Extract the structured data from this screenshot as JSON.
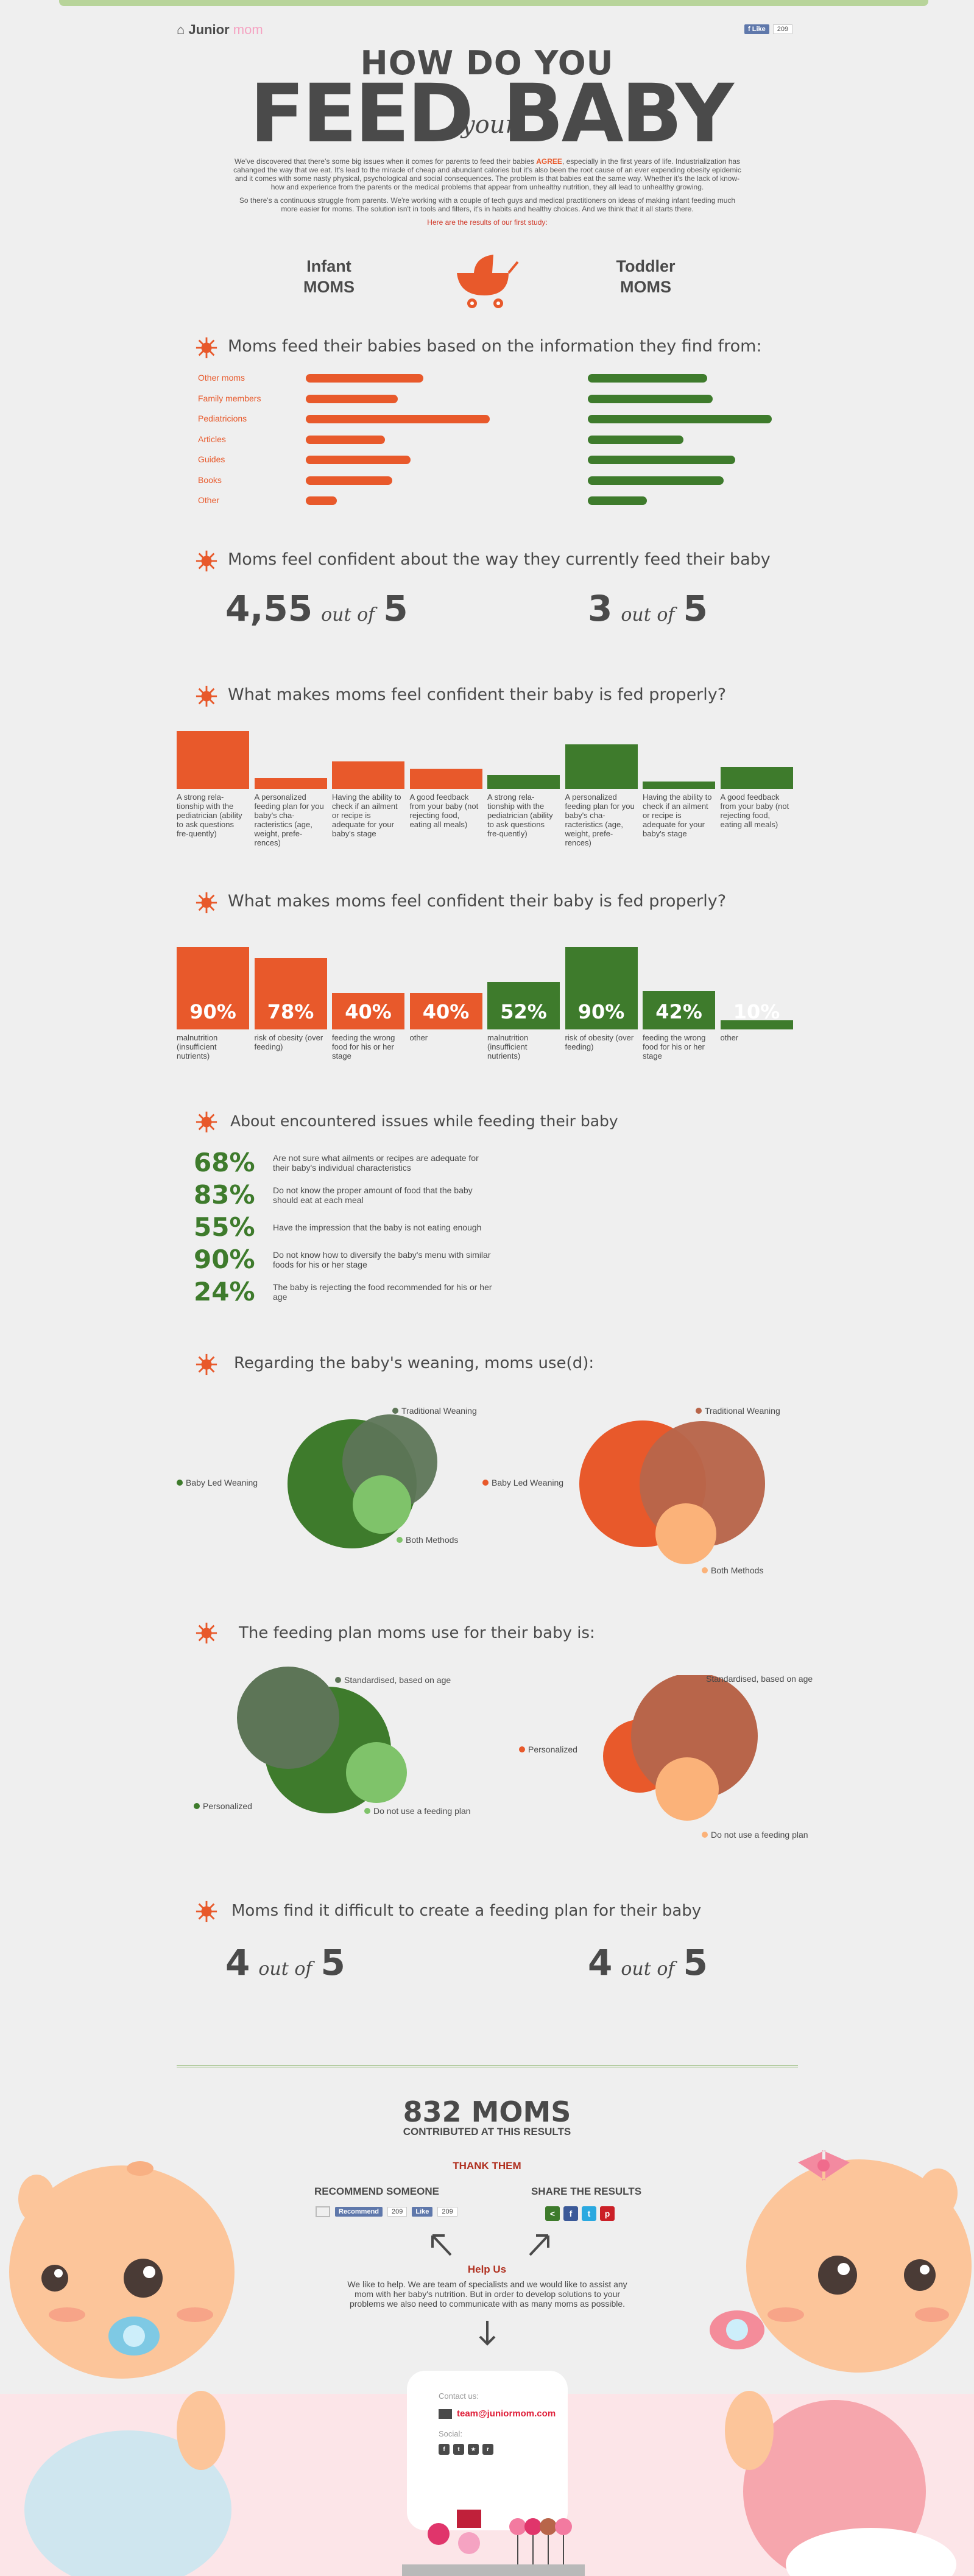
{
  "header": {
    "logo_a": "Junior",
    "logo_b": "mom",
    "fb_like": "Like",
    "fb_count": "209"
  },
  "title": {
    "how": "HOW DO YOU",
    "feed": "FEED",
    "your": "your",
    "baby": "BABY"
  },
  "intro": {
    "p1a": "We've discovered that there's some big issues when it comes for parents to feed their babies ",
    "p1b": "AGREE",
    "p1c": ", especially in the first years of life. Industrialization has cahanged the way that we eat. It's lead to the miracle of cheap and abundant calories but it's also been the root cause of an ever expending obesity epidemic and it comes with some nasty physical, psychological and social consequences. The problem is that babies eat the same way. Whether it's the lack of know-how and experience from the parents or the medical problems that appear from unhealthy nutrition, they all lead to unhealthy growing.",
    "p2": "So there's a continuous struggle from parents. We're working with a couple of tech guys and medical practitioners on ideas of making infant feeding much more easier for moms. The solution isn't in tools and filters, it's in habits and healthy choices. And we think that it all starts there.",
    "p3": "Here are the results of our first study:"
  },
  "columns": {
    "infant_a": "Infant",
    "infant_b": "MOMS",
    "toddler_a": "Toddler",
    "toddler_b": "MOMS"
  },
  "colors": {
    "orange": "#e8592b",
    "green": "#3e7b2c",
    "lightgreen": "#7fc36a",
    "peach": "#fbb279",
    "brown": "#b8654a",
    "sage": "#5d7557"
  },
  "s1": {
    "title": "Moms feed their babies based on the information they find from:",
    "sources": [
      {
        "label": "Other moms",
        "infant": 0.64,
        "toddler": 0.65
      },
      {
        "label": "Family members",
        "infant": 0.5,
        "toddler": 0.68
      },
      {
        "label": "Pediatricions",
        "infant": 1.0,
        "toddler": 1.0
      },
      {
        "label": "Articles",
        "infant": 0.43,
        "toddler": 0.52
      },
      {
        "label": "Guides",
        "infant": 0.57,
        "toddler": 0.8
      },
      {
        "label": "Books",
        "infant": 0.47,
        "toddler": 0.74
      },
      {
        "label": "Other",
        "infant": 0.17,
        "toddler": 0.32
      }
    ]
  },
  "s2": {
    "title": "Moms feel confident about the way they currently feed their baby",
    "infant_score": "4,55",
    "infant_max": "5",
    "toddler_score": "3",
    "toddler_max": "5",
    "out_of": "out of"
  },
  "s3": {
    "title": "What makes moms feel confident their baby is fed properly?",
    "infant": [
      {
        "v": 0.95,
        "label": "A strong rela-tionship with the pediatrician (ability to ask questions fre-quently)"
      },
      {
        "v": 0.18,
        "label": "A personalized feeding plan for you baby's cha-racteristics (age, weight, prefe-rences)"
      },
      {
        "v": 0.45,
        "label": "Having the ability to check if an ailment or recipe is adequate for your baby's stage"
      },
      {
        "v": 0.33,
        "label": "A good feedback from your baby (not rejecting food, eating all meals)"
      }
    ],
    "toddler": [
      {
        "v": 0.23,
        "label": "A strong rela-tionship with the pediatrician (ability to ask questions fre-quently)"
      },
      {
        "v": 0.73,
        "label": "A personalized feeding plan for you baby's cha-racteristics (age, weight, prefe-rences)"
      },
      {
        "v": 0.12,
        "label": "Having the ability to check if an ailment or recipe is adequate for your baby's stage"
      },
      {
        "v": 0.36,
        "label": "A good feedback from your baby (not rejecting food, eating all meals)"
      }
    ]
  },
  "s4": {
    "title": "What makes moms feel confident their baby is fed properly?",
    "infant": [
      {
        "pct": "90%",
        "v": 0.9,
        "label": "malnutrition (insufficient nutrients)"
      },
      {
        "pct": "78%",
        "v": 0.78,
        "label": "risk of obesity (over feeding)"
      },
      {
        "pct": "40%",
        "v": 0.4,
        "label": "feeding the wrong food for his or her stage"
      },
      {
        "pct": "40%",
        "v": 0.4,
        "label": "other"
      }
    ],
    "toddler": [
      {
        "pct": "52%",
        "v": 0.52,
        "label": "malnutrition (insufficient nutrients)"
      },
      {
        "pct": "90%",
        "v": 0.9,
        "label": "risk of obesity (over feeding)"
      },
      {
        "pct": "42%",
        "v": 0.42,
        "label": "feeding the wrong food for his or her stage"
      },
      {
        "pct": "10%",
        "v": 0.1,
        "label": "other"
      }
    ]
  },
  "s5": {
    "title": "About encountered issues while feeding their baby",
    "issues": [
      {
        "pct": "68%",
        "text": "Are not sure what ailments or recipes are adequate for their baby's individual characteristics"
      },
      {
        "pct": "83%",
        "text": "Do not know the proper amount of food that the baby should eat at each meal"
      },
      {
        "pct": "55%",
        "text": "Have the impression that the baby is not eating enough"
      },
      {
        "pct": "90%",
        "text": "Do not know how to diversify the baby's menu with similar foods for his or her stage"
      },
      {
        "pct": "24%",
        "text": "The baby is rejecting the food recommended for his or her age"
      }
    ]
  },
  "s6": {
    "title": "Regarding the baby's weaning, moms use(d):",
    "traditional": "Traditional Weaning",
    "led": "Baby Led Weaning",
    "both": "Both Methods"
  },
  "s7": {
    "title": "The feeding plan moms use for their baby is:",
    "standard": "Standardised, based on age",
    "personal": "Personalized",
    "none": "Do not use a feeding plan"
  },
  "s8": {
    "title": "Moms find it difficult to create a feeding plan for their baby",
    "infant_score": "4",
    "infant_max": "5",
    "toddler_score": "4",
    "toddler_max": "5",
    "out_of": "out of"
  },
  "footer": {
    "moms": "832 MOMS",
    "contrib": "CONTRIBUTED AT THIS RESULTS",
    "thank": "THANK THEM",
    "recommend": "RECOMMEND SOMEONE",
    "share": "SHARE THE RESULTS",
    "rec_btn": "Recommend",
    "rec_count": "209",
    "like_btn": "Like",
    "like_count": "209",
    "help_h": "Help Us",
    "help_t": "We like to help. We are team of specialists and we would like to assist any mom with her baby's nutrition. But in order to develop solutions to your problems we also need to communicate with as many moms as possible.",
    "contact": "Contact us:",
    "email": "team@juniormom.com",
    "social": "Social:"
  }
}
